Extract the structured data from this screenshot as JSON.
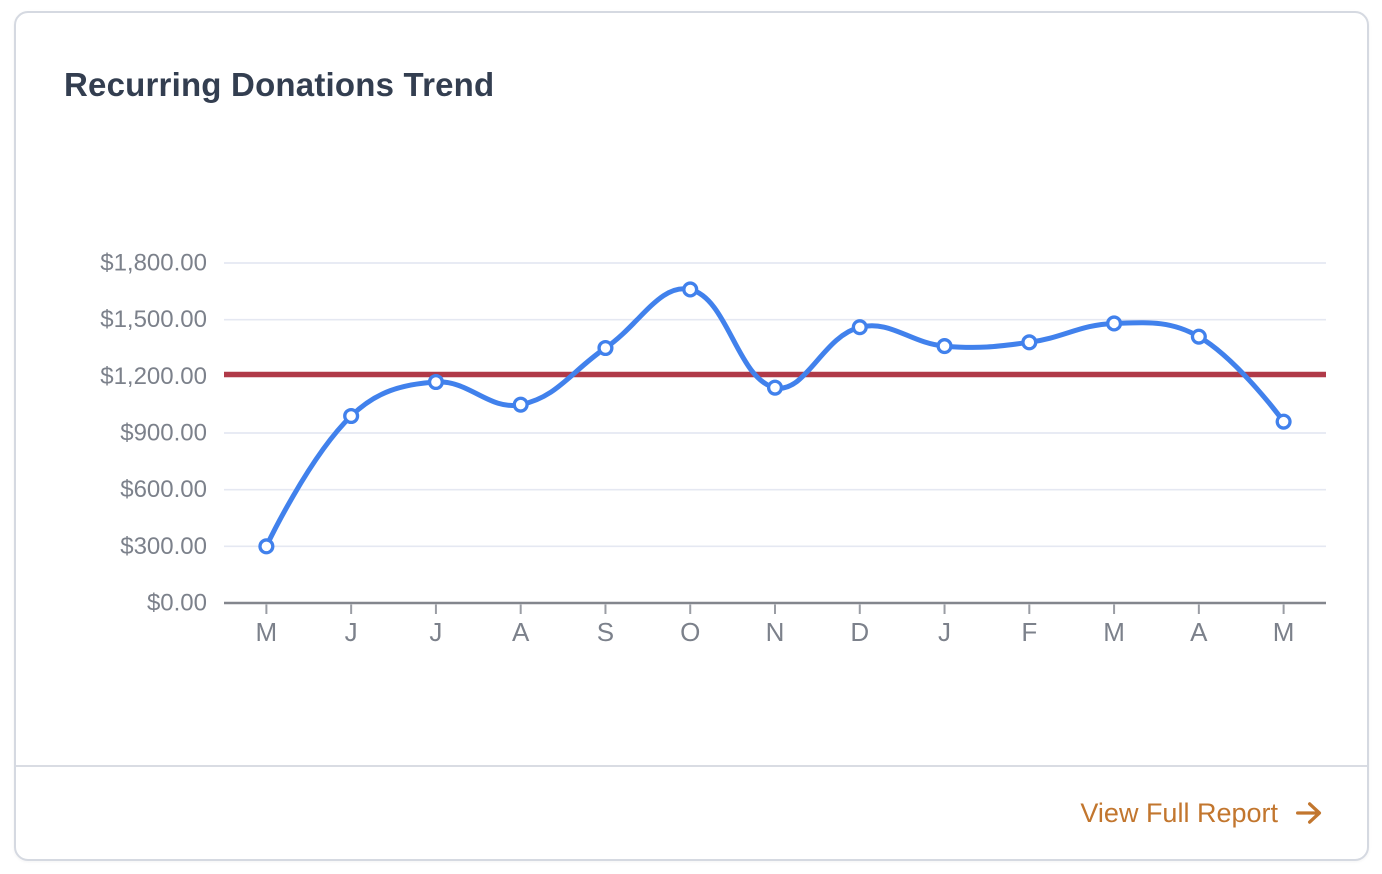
{
  "card": {
    "title": "Recurring Donations Trend",
    "footer": {
      "link_label": "View Full Report",
      "link_color": "#c2762e"
    }
  },
  "chart_data": {
    "type": "line",
    "title": "Recurring Donations Trend",
    "categories": [
      "M",
      "J",
      "J",
      "A",
      "S",
      "O",
      "N",
      "D",
      "J",
      "F",
      "M",
      "A",
      "M"
    ],
    "values": [
      300,
      990,
      1170,
      1050,
      1350,
      1660,
      1140,
      1460,
      1360,
      1380,
      1480,
      1410,
      960
    ],
    "reference_line": {
      "value": 1210,
      "color": "#b03a48"
    },
    "ylim": [
      0,
      1800
    ],
    "y_tick_step": 300,
    "y_tick_labels": [
      "$0.00",
      "$300.00",
      "$600.00",
      "$900.00",
      "$1,200.00",
      "$1,500.00",
      "$1,800.00"
    ],
    "grid": true,
    "legend": false,
    "curve": "smooth",
    "marker": "circle-open",
    "colors": {
      "line": "#4181ec",
      "marker_fill": "#ffffff",
      "grid": "#e5e8f2",
      "axis": "#83868d",
      "tick": "#9a9da4",
      "axis_text": "#7c818b"
    }
  }
}
